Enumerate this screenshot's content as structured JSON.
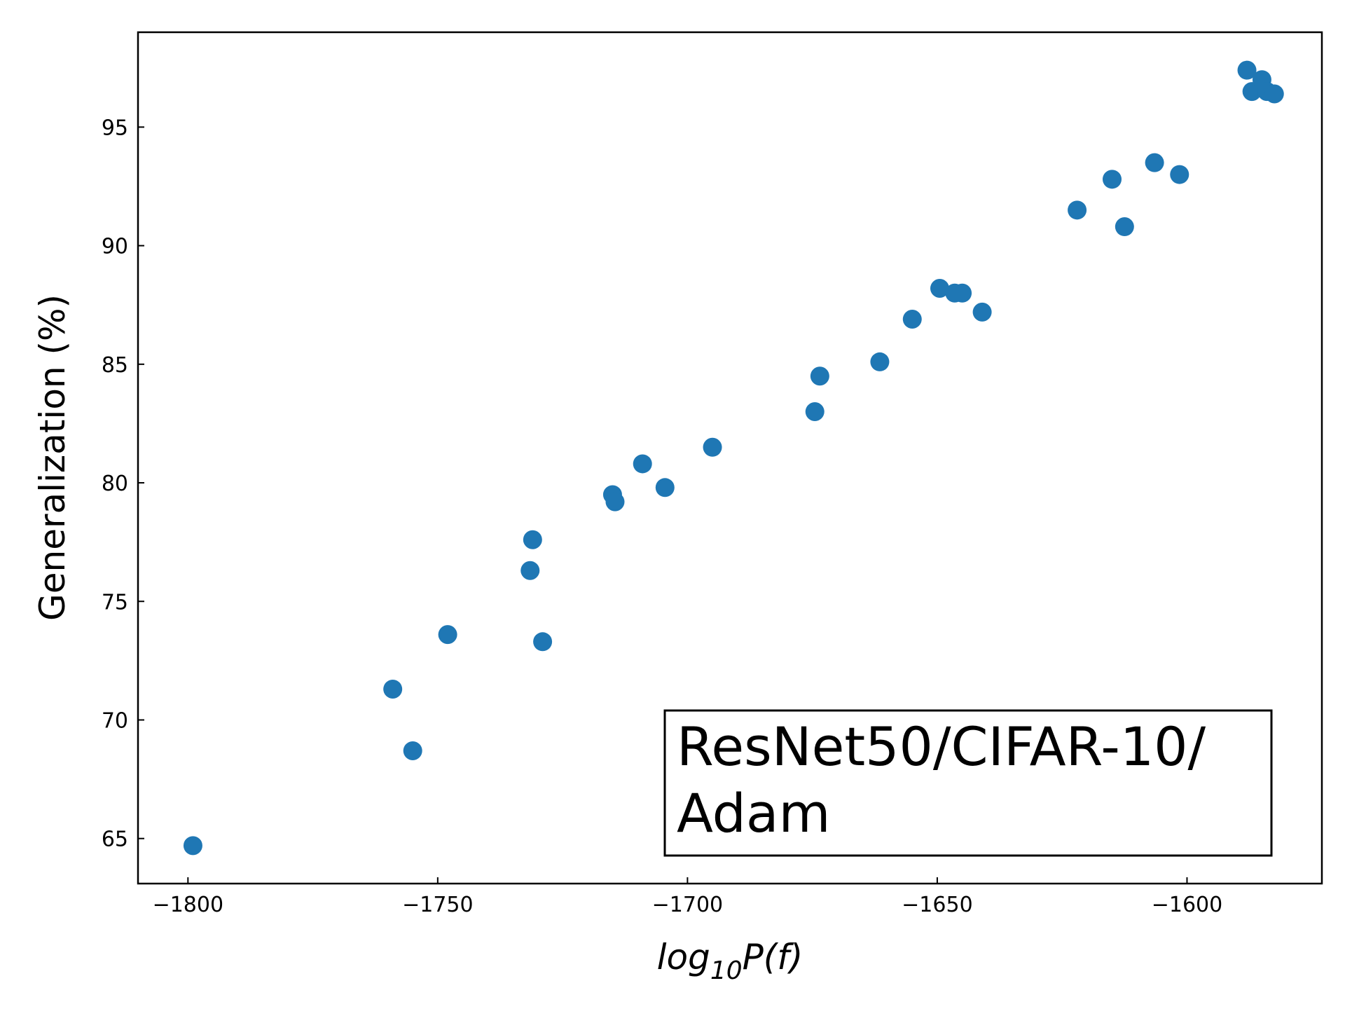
{
  "chart_data": {
    "type": "scatter",
    "xlabel": {
      "base": "log",
      "subscript": "10",
      "rest": "P(f)"
    },
    "ylabel": "Generalization (%)",
    "xlim": [
      -1810,
      -1573
    ],
    "ylim": [
      63.1,
      99.0
    ],
    "xticks": [
      -1800,
      -1750,
      -1700,
      -1650,
      -1600
    ],
    "xtick_labels": [
      "−1800",
      "−1750",
      "−1700",
      "−1650",
      "−1600"
    ],
    "yticks": [
      65,
      70,
      75,
      80,
      85,
      90,
      95
    ],
    "ytick_labels": [
      "65",
      "70",
      "75",
      "80",
      "85",
      "90",
      "95"
    ],
    "grid": false,
    "annotation": {
      "lines": [
        "ResNet50/CIFAR-10/",
        "Adam"
      ],
      "placement": "bottom-right"
    },
    "marker_color": "#1f77b4",
    "series": [
      {
        "points": [
          {
            "x": -1799,
            "y": 64.7
          },
          {
            "x": -1759,
            "y": 71.3
          },
          {
            "x": -1755,
            "y": 68.7
          },
          {
            "x": -1748,
            "y": 73.6
          },
          {
            "x": -1731.5,
            "y": 76.3
          },
          {
            "x": -1731,
            "y": 77.6
          },
          {
            "x": -1729,
            "y": 73.3
          },
          {
            "x": -1715,
            "y": 79.5
          },
          {
            "x": -1714.5,
            "y": 79.2
          },
          {
            "x": -1709,
            "y": 80.8
          },
          {
            "x": -1704.5,
            "y": 79.8
          },
          {
            "x": -1695,
            "y": 81.5
          },
          {
            "x": -1674.5,
            "y": 83.0
          },
          {
            "x": -1673.5,
            "y": 84.5
          },
          {
            "x": -1661.5,
            "y": 85.1
          },
          {
            "x": -1655,
            "y": 86.9
          },
          {
            "x": -1649.5,
            "y": 88.2
          },
          {
            "x": -1646.5,
            "y": 88.0
          },
          {
            "x": -1645,
            "y": 88.0
          },
          {
            "x": -1641,
            "y": 87.2
          },
          {
            "x": -1622,
            "y": 91.5
          },
          {
            "x": -1615,
            "y": 92.8
          },
          {
            "x": -1612.5,
            "y": 90.8
          },
          {
            "x": -1606.5,
            "y": 93.5
          },
          {
            "x": -1601.5,
            "y": 93.0
          },
          {
            "x": -1588,
            "y": 97.4
          },
          {
            "x": -1587,
            "y": 96.5
          },
          {
            "x": -1585,
            "y": 97.0
          },
          {
            "x": -1584,
            "y": 96.5
          },
          {
            "x": -1582.5,
            "y": 96.4
          }
        ]
      }
    ]
  }
}
